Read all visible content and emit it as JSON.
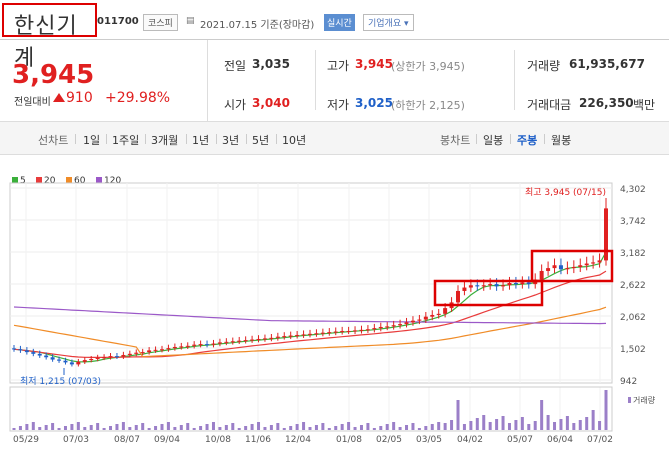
{
  "header": {
    "stock_name": "한신기계",
    "stock_code": "011700",
    "market": "코스피",
    "date_label": "2021.07.15 기준(장마감)",
    "realtime": "실시간",
    "company_info": "기업개요 ▾"
  },
  "price": {
    "current": "3,945",
    "change_label": "전일대비",
    "change": "910",
    "change_pct": "+29.98%"
  },
  "stats": {
    "prev_close_label": "전일",
    "prev_close": "3,035",
    "open_label": "시가",
    "open": "3,040",
    "high_label": "고가",
    "high": "3,945",
    "high_note": "(상한가 3,945)",
    "low_label": "저가",
    "low": "3,025",
    "low_note": "(하한가 2,125)",
    "volume_label": "거래량",
    "volume": "61,935,677",
    "amount_label": "거래대금",
    "amount": "226,350",
    "amount_unit": "백만"
  },
  "tabs": {
    "line_label": "선차트",
    "line": [
      "1일",
      "1주일",
      "3개월",
      "1년",
      "3년",
      "5년",
      "10년"
    ],
    "candle_label": "봉차트",
    "candle": [
      "일봉",
      "주봉",
      "월봉"
    ],
    "candle_selected": "주봉"
  },
  "legend": [
    {
      "label": "5",
      "color": "#3bb03b"
    },
    {
      "label": "20",
      "color": "#e83c3c"
    },
    {
      "label": "60",
      "color": "#f08c28"
    },
    {
      "label": "120",
      "color": "#9b59c8"
    }
  ],
  "chart_data": {
    "type": "candlestick",
    "y_ticks": [
      "4,302",
      "3,742",
      "3,182",
      "2,622",
      "2,062",
      "1,502",
      "942"
    ],
    "ylim": [
      942,
      4302
    ],
    "x_ticks": [
      "05/29",
      "07/03",
      "08/07",
      "09/04",
      "10/08",
      "11/06",
      "12/04",
      "01/08",
      "02/05",
      "03/05",
      "04/02",
      "05/07",
      "06/04",
      "07/02"
    ],
    "max_annotation": "최고 3,945 (07/15)",
    "min_annotation": "최저 1,215 (07/03)",
    "volume_label": "거래량"
  }
}
